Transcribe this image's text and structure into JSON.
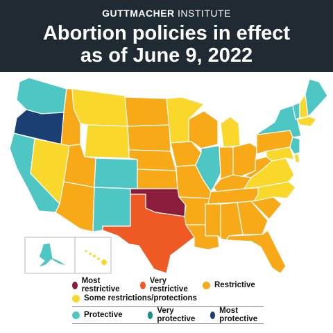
{
  "header": {
    "brand_bold": "GUTTMACHER",
    "brand_light": " INSTITUTE",
    "title_line1": "Abortion policies in effect",
    "title_line2": "as of June 9, 2022"
  },
  "colors": {
    "most_restrictive": "#8b1c3c",
    "very_restrictive": "#ef5a24",
    "restrictive": "#f7a918",
    "some": "#fad72b",
    "protective": "#4ec7c4",
    "very_protective": "#14918a",
    "most_protective": "#1b3f73",
    "header_bg": "#1f2a33"
  },
  "legend": {
    "most_restrictive": "Most restrictive",
    "very_restrictive": "Very restrictive",
    "restrictive": "Restrictive",
    "some": "Some restrictions/protections",
    "protective": "Protective",
    "very_protective": "Very protective",
    "most_protective": "Most protective"
  },
  "states": {
    "WA": "protective",
    "OR": "most_protective",
    "CA": "protective",
    "NV": "some",
    "ID": "restrictive",
    "MT": "some",
    "WY": "some",
    "UT": "restrictive",
    "AZ": "restrictive",
    "CO": "protective",
    "NM": "protective",
    "ND": "restrictive",
    "SD": "restrictive",
    "NE": "restrictive",
    "KS": "restrictive",
    "OK": "most_restrictive",
    "TX": "very_restrictive",
    "MN": "some",
    "IA": "restrictive",
    "MO": "restrictive",
    "AR": "restrictive",
    "LA": "restrictive",
    "WI": "restrictive",
    "IL": "protective",
    "MI": "some",
    "IN": "restrictive",
    "OH": "restrictive",
    "KY": "restrictive",
    "TN": "restrictive",
    "MS": "restrictive",
    "AL": "restrictive",
    "GA": "restrictive",
    "FL": "restrictive",
    "SC": "restrictive",
    "NC": "some",
    "VA": "some",
    "WV": "restrictive",
    "PA": "restrictive",
    "NY": "protective",
    "ME": "protective",
    "VT": "protective",
    "NH": "some",
    "MA": "some",
    "NJ": "protective",
    "MD": "some",
    "DE": "some",
    "AK": "protective",
    "HI": "some"
  }
}
